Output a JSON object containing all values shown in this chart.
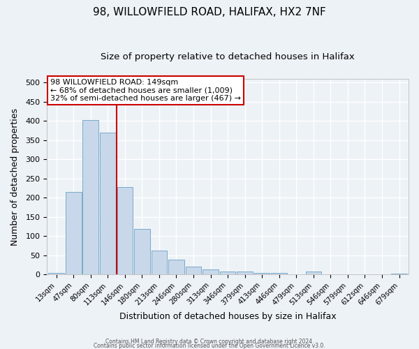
{
  "title1": "98, WILLOWFIELD ROAD, HALIFAX, HX2 7NF",
  "title2": "Size of property relative to detached houses in Halifax",
  "xlabel": "Distribution of detached houses by size in Halifax",
  "ylabel": "Number of detached properties",
  "bin_labels": [
    "13sqm",
    "47sqm",
    "80sqm",
    "113sqm",
    "146sqm",
    "180sqm",
    "213sqm",
    "246sqm",
    "280sqm",
    "313sqm",
    "346sqm",
    "379sqm",
    "413sqm",
    "446sqm",
    "479sqm",
    "513sqm",
    "546sqm",
    "579sqm",
    "612sqm",
    "646sqm",
    "679sqm"
  ],
  "bar_heights": [
    5,
    215,
    403,
    370,
    228,
    119,
    63,
    39,
    20,
    13,
    7,
    7,
    5,
    5,
    0,
    7,
    0,
    0,
    0,
    0,
    3
  ],
  "bar_color": "#c8d8ea",
  "bar_edge_color": "#7aaac8",
  "vline_bin_index": 4,
  "vline_color": "#cc0000",
  "annotation_line1": "98 WILLOWFIELD ROAD: 149sqm",
  "annotation_line2": "← 68% of detached houses are smaller (1,009)",
  "annotation_line3": "32% of semi-detached houses are larger (467) →",
  "annotation_box_color": "#ffffff",
  "annotation_box_edge_color": "#cc0000",
  "ylim": [
    0,
    510
  ],
  "yticks": [
    0,
    50,
    100,
    150,
    200,
    250,
    300,
    350,
    400,
    450,
    500
  ],
  "footer1": "Contains HM Land Registry data © Crown copyright and database right 2024.",
  "footer2": "Contains public sector information licensed under the Open Government Licence v3.0.",
  "background_color": "#edf2f7",
  "grid_color": "#ffffff",
  "title1_fontsize": 11,
  "title2_fontsize": 9.5,
  "annotation_fontsize": 8
}
